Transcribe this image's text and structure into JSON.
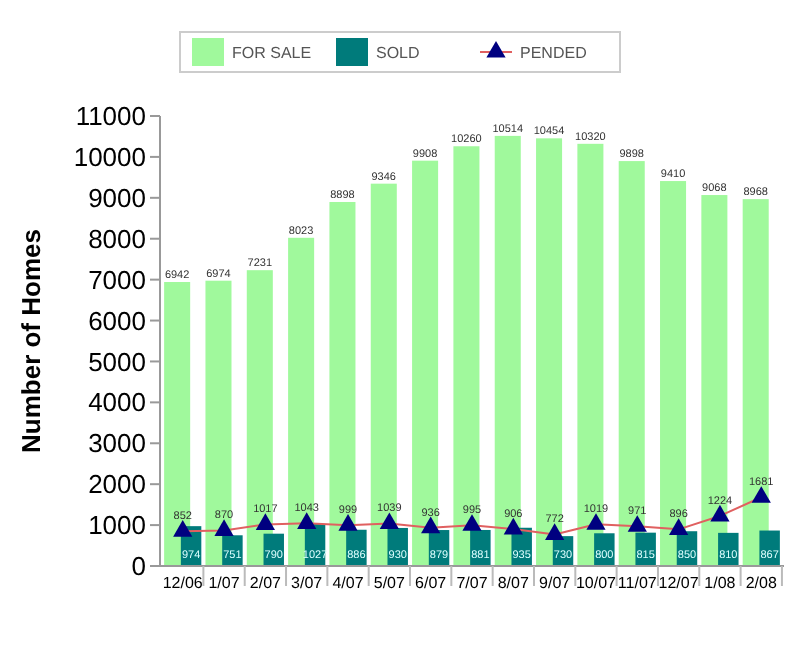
{
  "chart_data": {
    "type": "bar",
    "ylabel": "Number of Homes",
    "categories": [
      "12/06",
      "1/07",
      "2/07",
      "3/07",
      "4/07",
      "5/07",
      "6/07",
      "7/07",
      "8/07",
      "9/07",
      "10/07",
      "11/07",
      "12/07",
      "1/08",
      "2/08"
    ],
    "series": [
      {
        "name": "FOR SALE",
        "color": "#a0f99c",
        "values": [
          6942,
          6974,
          7231,
          8023,
          8898,
          9346,
          9908,
          10260,
          10514,
          10454,
          10320,
          9898,
          9410,
          9068,
          8968
        ]
      },
      {
        "name": "SOLD",
        "color": "#007b7b",
        "values": [
          974,
          751,
          790,
          1027,
          886,
          930,
          879,
          881,
          935,
          730,
          800,
          815,
          850,
          810,
          867
        ]
      },
      {
        "name": "PENDED",
        "type": "line",
        "color": "#e06060",
        "marker": "triangle",
        "values": [
          852,
          870,
          1017,
          1043,
          999,
          1039,
          936,
          995,
          906,
          772,
          1019,
          971,
          896,
          1224,
          1681
        ]
      }
    ],
    "ylim": [
      0,
      11000
    ],
    "yticks": [
      0,
      1000,
      2000,
      3000,
      4000,
      5000,
      6000,
      7000,
      8000,
      9000,
      10000,
      11000
    ],
    "data_labels": true,
    "legend": "top",
    "grid": false
  }
}
